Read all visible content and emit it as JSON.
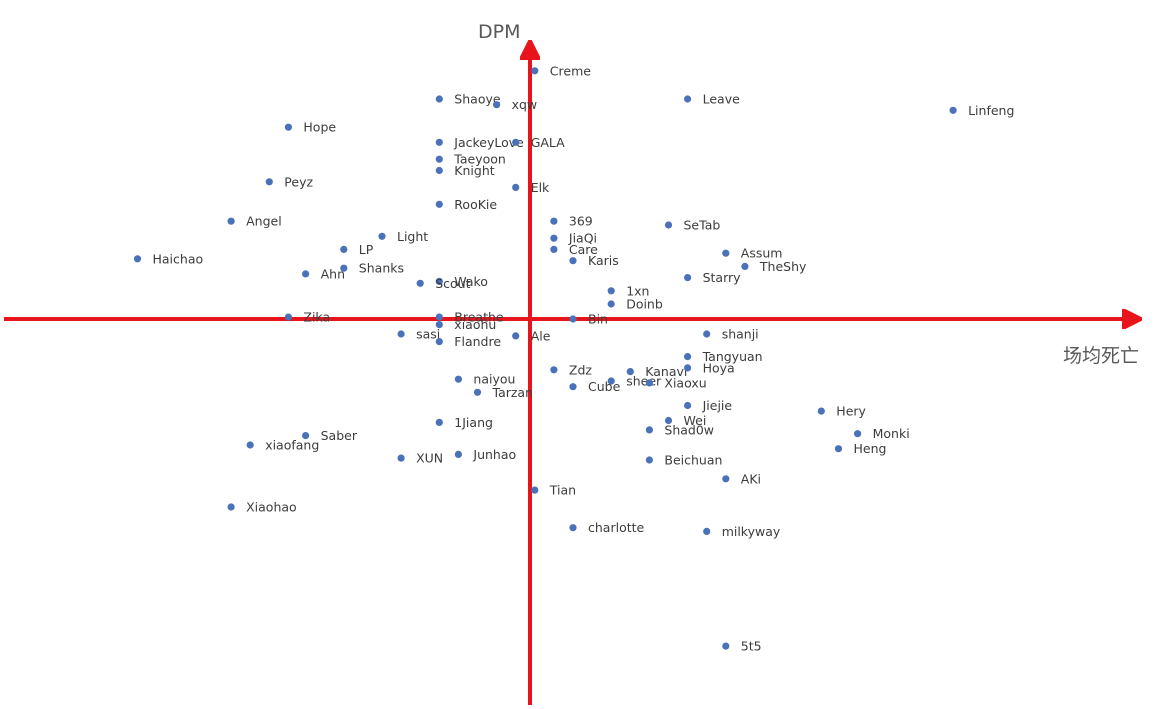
{
  "chart_data": {
    "type": "scatter",
    "title": "",
    "xlabel": "场均死亡",
    "ylabel": "DPM",
    "grid": false,
    "legend": "none",
    "axis_color": "#e8141c",
    "point_color": "#4a72b8",
    "points": [
      {
        "name": "Creme",
        "x": 0.2,
        "y": 13.2
      },
      {
        "name": "Shaoye",
        "x": -4.8,
        "y": 11.7
      },
      {
        "name": "xqw",
        "x": -1.8,
        "y": 11.4
      },
      {
        "name": "Leave",
        "x": 8.2,
        "y": 11.7
      },
      {
        "name": "Linfeng",
        "x": 22.1,
        "y": 11.1
      },
      {
        "name": "Hope",
        "x": -12.7,
        "y": 10.2
      },
      {
        "name": "JackeyLove",
        "x": -4.8,
        "y": 9.4
      },
      {
        "name": "GALA",
        "x": -0.8,
        "y": 9.4
      },
      {
        "name": "Taeyoon",
        "x": -4.8,
        "y": 8.5
      },
      {
        "name": "Knight",
        "x": -4.8,
        "y": 7.9
      },
      {
        "name": "Peyz",
        "x": -13.7,
        "y": 7.3
      },
      {
        "name": "Elk",
        "x": -0.8,
        "y": 7.0
      },
      {
        "name": "RooKie",
        "x": -4.8,
        "y": 6.1
      },
      {
        "name": "Angel",
        "x": -15.7,
        "y": 5.2
      },
      {
        "name": "369",
        "x": 1.2,
        "y": 5.2
      },
      {
        "name": "SeTab",
        "x": 7.2,
        "y": 5.0
      },
      {
        "name": "Light",
        "x": -7.8,
        "y": 4.4
      },
      {
        "name": "JiaQi",
        "x": 1.2,
        "y": 4.3
      },
      {
        "name": "LP",
        "x": -9.8,
        "y": 3.7
      },
      {
        "name": "Care",
        "x": 1.2,
        "y": 3.7
      },
      {
        "name": "Assum",
        "x": 10.2,
        "y": 3.5
      },
      {
        "name": "Haichao",
        "x": -20.6,
        "y": 3.2
      },
      {
        "name": "Karis",
        "x": 2.2,
        "y": 3.1
      },
      {
        "name": "Shanks",
        "x": -9.8,
        "y": 2.7
      },
      {
        "name": "TheShy",
        "x": 11.2,
        "y": 2.8
      },
      {
        "name": "Ahn",
        "x": -11.8,
        "y": 2.4
      },
      {
        "name": "Starry",
        "x": 8.2,
        "y": 2.2
      },
      {
        "name": "Wako",
        "x": -4.8,
        "y": 2.0
      },
      {
        "name": "Scout",
        "x": -5.8,
        "y": 1.9
      },
      {
        "name": "1xn",
        "x": 4.2,
        "y": 1.5
      },
      {
        "name": "Doinb",
        "x": 4.2,
        "y": 0.8
      },
      {
        "name": "Breathe",
        "x": -4.8,
        "y": 0.1
      },
      {
        "name": "Zika",
        "x": -12.7,
        "y": 0.1
      },
      {
        "name": "Bin",
        "x": 2.2,
        "y": 0.0
      },
      {
        "name": "xiaohu",
        "x": -4.8,
        "y": -0.3
      },
      {
        "name": "sasi",
        "x": -6.8,
        "y": -0.8
      },
      {
        "name": "Ale",
        "x": -0.8,
        "y": -0.9
      },
      {
        "name": "shanji",
        "x": 9.2,
        "y": -0.8
      },
      {
        "name": "Flandre",
        "x": -4.8,
        "y": -1.2
      },
      {
        "name": "Tangyuan",
        "x": 8.2,
        "y": -2.0
      },
      {
        "name": "Zdz",
        "x": 1.2,
        "y": -2.7
      },
      {
        "name": "Kanavi",
        "x": 5.2,
        "y": -2.8
      },
      {
        "name": "Hoya",
        "x": 8.2,
        "y": -2.6
      },
      {
        "name": "naiyou",
        "x": -3.8,
        "y": -3.2
      },
      {
        "name": "sheer",
        "x": 4.2,
        "y": -3.3
      },
      {
        "name": "Xiaoxu",
        "x": 6.2,
        "y": -3.4
      },
      {
        "name": "Cube",
        "x": 2.2,
        "y": -3.6
      },
      {
        "name": "Tarzan",
        "x": -2.8,
        "y": -3.9
      },
      {
        "name": "Jiejie",
        "x": 8.2,
        "y": -4.6
      },
      {
        "name": "Hery",
        "x": 15.2,
        "y": -4.9
      },
      {
        "name": "Wei",
        "x": 7.2,
        "y": -5.4
      },
      {
        "name": "1Jiang",
        "x": -4.8,
        "y": -5.5
      },
      {
        "name": "Shad0w",
        "x": 6.2,
        "y": -5.9
      },
      {
        "name": "Saber",
        "x": -11.8,
        "y": -6.2
      },
      {
        "name": "Monki",
        "x": 17.1,
        "y": -6.1
      },
      {
        "name": "xiaofang",
        "x": -14.7,
        "y": -6.7
      },
      {
        "name": "Heng",
        "x": 16.1,
        "y": -6.9
      },
      {
        "name": "XUN",
        "x": -6.8,
        "y": -7.4
      },
      {
        "name": "Junhao",
        "x": -3.8,
        "y": -7.2
      },
      {
        "name": "Beichuan",
        "x": 6.2,
        "y": -7.5
      },
      {
        "name": "AKi",
        "x": 10.2,
        "y": -8.5
      },
      {
        "name": "Tian",
        "x": 0.2,
        "y": -9.1
      },
      {
        "name": "Xiaohao",
        "x": -15.7,
        "y": -10.0
      },
      {
        "name": "charlotte",
        "x": 2.2,
        "y": -11.1
      },
      {
        "name": "milkyway",
        "x": 9.2,
        "y": -11.3
      },
      {
        "name": "5t5",
        "x": 10.2,
        "y": -17.4
      }
    ]
  }
}
